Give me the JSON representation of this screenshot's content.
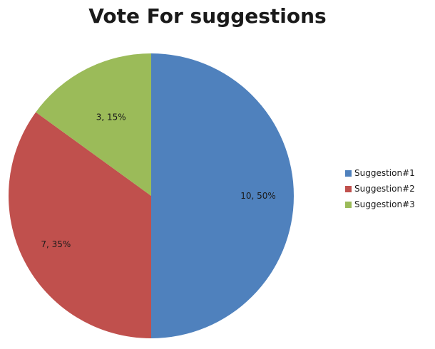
{
  "chart_data": {
    "type": "pie",
    "title": "Vote For suggestions",
    "categories": [
      "Suggestion#1",
      "Suggestion#2",
      "Suggestion#3"
    ],
    "values": [
      10,
      7,
      3
    ],
    "percentages": [
      50,
      35,
      15
    ],
    "data_labels": [
      "10, 50%",
      "7, 35%",
      "3, 15%"
    ],
    "colors": [
      "#4f81bd",
      "#c0504d",
      "#9bbb59"
    ],
    "start_angle_deg": 0,
    "direction": "clockwise",
    "legend_position": "right"
  }
}
